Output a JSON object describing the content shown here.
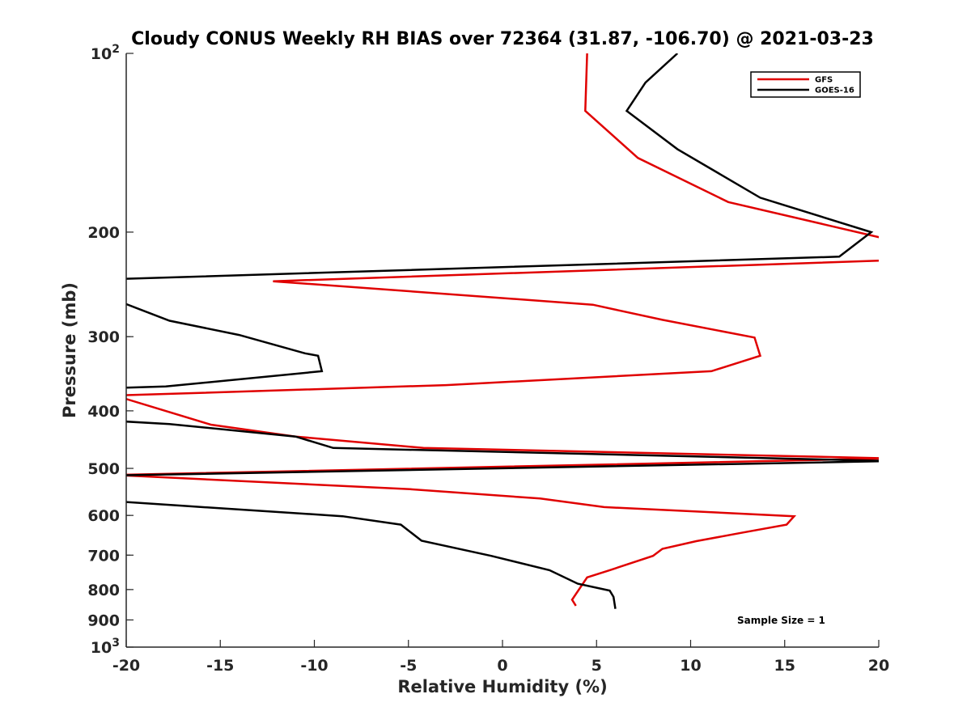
{
  "chart_data": {
    "type": "line",
    "title": "Cloudy CONUS Weekly RH BIAS over 72364 (31.87, -106.70) @ 2021-03-23",
    "xlabel": "Relative Humidity (%)",
    "ylabel": "Pressure (mb)",
    "xlim": [
      -20,
      20
    ],
    "ylim": [
      100,
      1000
    ],
    "y_scale": "log",
    "y_reversed": true,
    "grid": false,
    "legend_position": "top-right",
    "x_ticks": [
      {
        "value": -20,
        "label": "-20"
      },
      {
        "value": -15,
        "label": "-15"
      },
      {
        "value": -10,
        "label": "-10"
      },
      {
        "value": -5,
        "label": "-5"
      },
      {
        "value": 0,
        "label": "0"
      },
      {
        "value": 5,
        "label": "5"
      },
      {
        "value": 10,
        "label": "10"
      },
      {
        "value": 15,
        "label": "15"
      },
      {
        "value": 20,
        "label": "20"
      }
    ],
    "y_ticks": [
      {
        "value": 100,
        "base": "10",
        "exp": "2"
      },
      {
        "value": 200,
        "base": "200",
        "exp": ""
      },
      {
        "value": 300,
        "base": "300",
        "exp": ""
      },
      {
        "value": 400,
        "base": "400",
        "exp": ""
      },
      {
        "value": 500,
        "base": "500",
        "exp": ""
      },
      {
        "value": 600,
        "base": "600",
        "exp": ""
      },
      {
        "value": 700,
        "base": "700",
        "exp": ""
      },
      {
        "value": 800,
        "base": "800",
        "exp": ""
      },
      {
        "value": 900,
        "base": "900",
        "exp": ""
      },
      {
        "value": 1000,
        "base": "10",
        "exp": "3"
      }
    ],
    "annotation": "Sample Size = 1",
    "series": [
      {
        "name": "GFS",
        "color": "#e00000",
        "points": [
          [
            4.5,
            100
          ],
          [
            4.4,
            125
          ],
          [
            7.2,
            150
          ],
          [
            12.0,
            178
          ],
          [
            20.3,
            205
          ],
          [
            20.7,
            223
          ],
          [
            -12.2,
            242
          ],
          [
            4.8,
            265
          ],
          [
            8.5,
            281
          ],
          [
            13.4,
            301
          ],
          [
            13.7,
            323
          ],
          [
            11.1,
            343
          ],
          [
            -3.0,
            362
          ],
          [
            -20.6,
            377
          ],
          [
            -15.5,
            422
          ],
          [
            -11.0,
            442
          ],
          [
            -4.2,
            462
          ],
          [
            20.7,
            481
          ],
          [
            -20.6,
            513
          ],
          [
            -4.9,
            542
          ],
          [
            2.0,
            562
          ],
          [
            5.4,
            581
          ],
          [
            15.5,
            602
          ],
          [
            15.1,
            622
          ],
          [
            12.7,
            642
          ],
          [
            10.3,
            663
          ],
          [
            8.5,
            683
          ],
          [
            8.0,
            702
          ],
          [
            5.7,
            742
          ],
          [
            4.5,
            763
          ],
          [
            3.7,
            832
          ],
          [
            3.9,
            852
          ]
        ]
      },
      {
        "name": "GOES-16",
        "color": "#000000",
        "points": [
          [
            9.3,
            100
          ],
          [
            7.6,
            112
          ],
          [
            6.6,
            125
          ],
          [
            9.3,
            145
          ],
          [
            13.7,
            175
          ],
          [
            19.6,
            200
          ],
          [
            17.9,
            220
          ],
          [
            -20.6,
            240
          ],
          [
            -20.6,
            260
          ],
          [
            -17.7,
            282
          ],
          [
            -14.0,
            298
          ],
          [
            -10.5,
            320
          ],
          [
            -9.8,
            323
          ],
          [
            -9.6,
            343
          ],
          [
            -17.9,
            364
          ],
          [
            -20.4,
            366
          ],
          [
            -20.6,
            416
          ],
          [
            -17.7,
            421
          ],
          [
            -11.0,
            442
          ],
          [
            -9.0,
            462
          ],
          [
            20.7,
            486
          ],
          [
            -20.6,
            514
          ],
          [
            -20.6,
            568
          ],
          [
            -17.0,
            578
          ],
          [
            -8.5,
            602
          ],
          [
            -5.4,
            622
          ],
          [
            -4.3,
            662
          ],
          [
            -0.6,
            702
          ],
          [
            2.5,
            742
          ],
          [
            4.0,
            782
          ],
          [
            5.7,
            803
          ],
          [
            5.9,
            823
          ],
          [
            6.0,
            862
          ]
        ]
      }
    ]
  }
}
